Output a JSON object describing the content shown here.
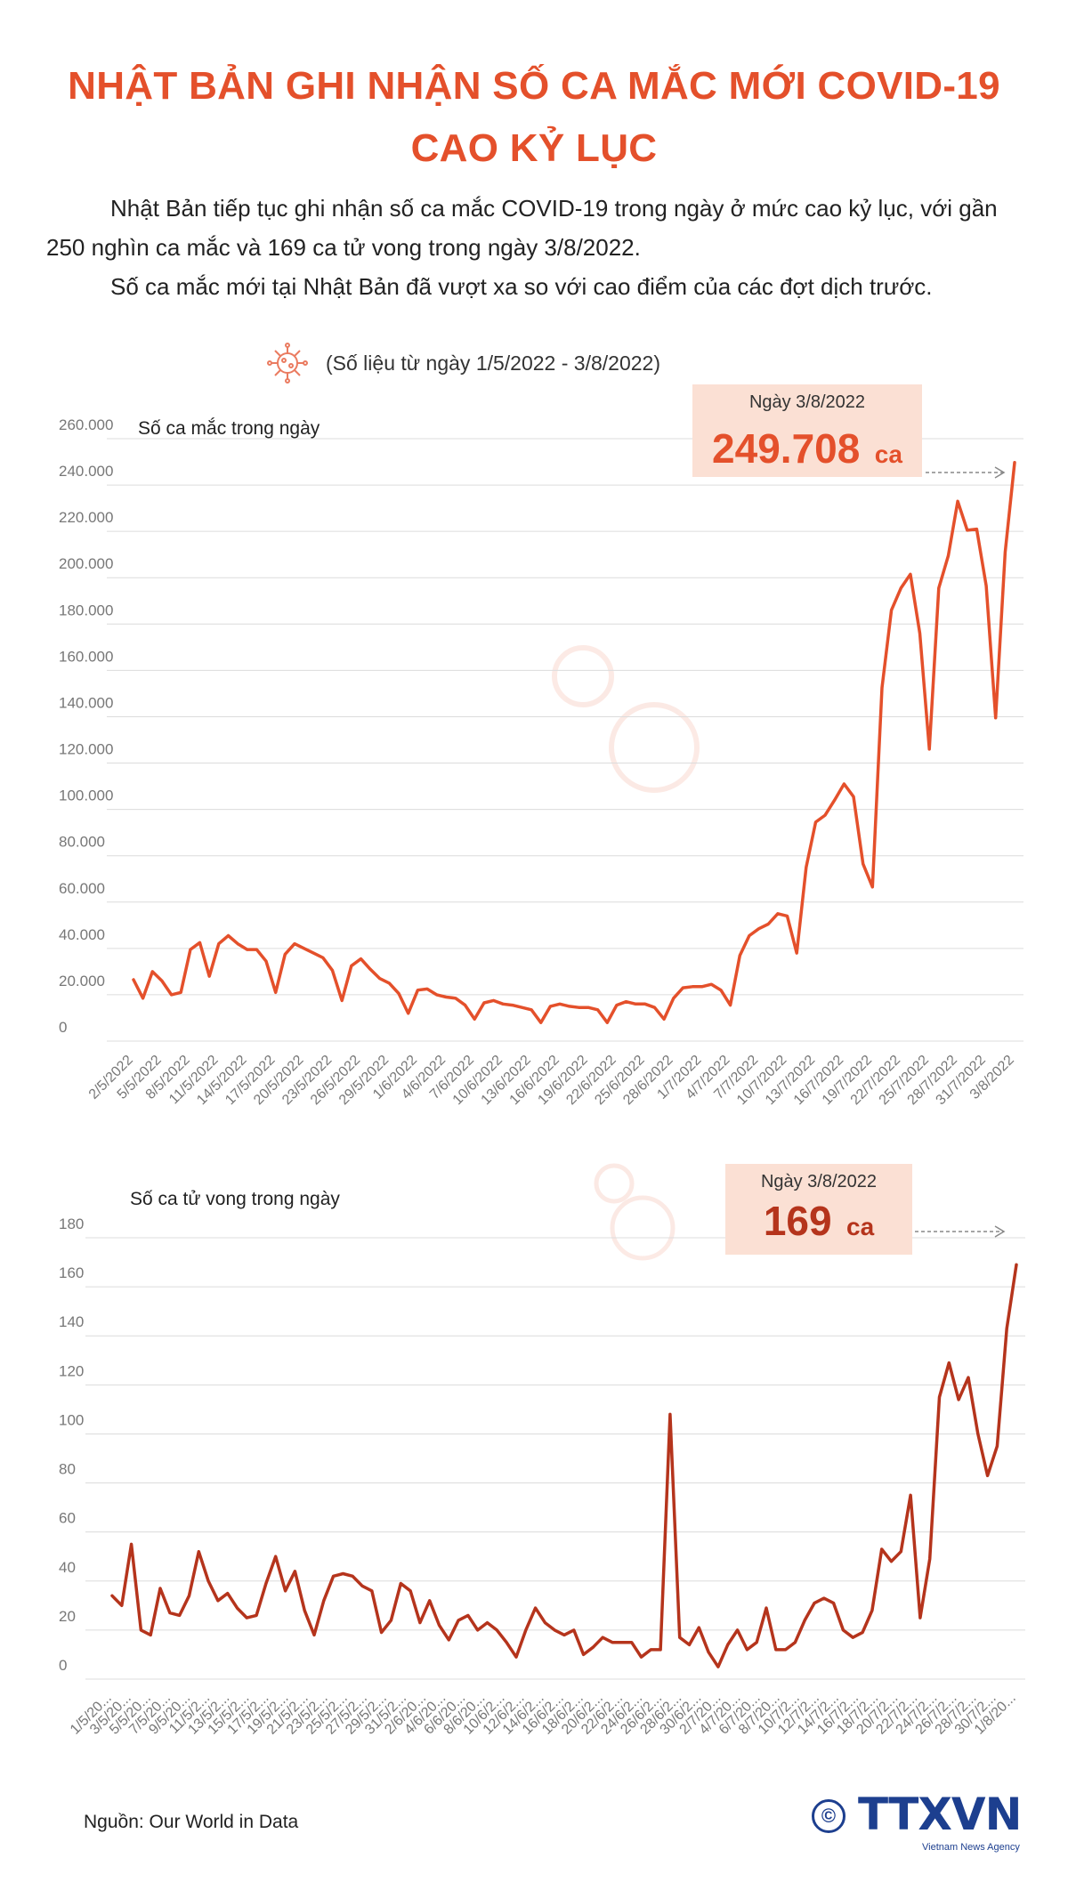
{
  "title_line1": "NHẬT BẢN GHI NHẬN SỐ CA MẮC MỚI COVID-19",
  "title_line2": "CAO KỶ LỤC",
  "intro_p1": "Nhật Bản tiếp tục ghi nhận số ca mắc COVID-19 trong ngày ở mức cao kỷ lục, với gần 250 nghìn ca mắc và 169 ca tử vong trong ngày 3/8/2022.",
  "intro_p2": "Số ca mắc mới tại Nhật Bản đã vượt xa so với cao điểm của các đợt dịch trước.",
  "date_range": "(Số liệu từ ngày 1/5/2022 - 3/8/2022)",
  "source": "Nguồn: Our World in Data",
  "logo": {
    "brand": "TTXVN",
    "sub": "Vietnam News Agency",
    "copyright": "©"
  },
  "colors": {
    "accent": "#e4502b",
    "cases_line": "#e4502b",
    "deaths_line": "#b5341c",
    "callout_bg": "#fbe0d4",
    "grid": "#dcdcdc"
  },
  "chart_data": [
    {
      "type": "line",
      "ylabel": "Số ca mắc trong ngày",
      "ylim": [
        0,
        260000
      ],
      "yticks": [
        "0",
        "20.000",
        "40.000",
        "60.000",
        "80.000",
        "100.000",
        "120.000",
        "140.000",
        "160.000",
        "180.000",
        "200.000",
        "220.000",
        "240.000",
        "260.000"
      ],
      "xtick_labels": [
        "2/5/2022",
        "5/5/2022",
        "8/5/2022",
        "11/5/2022",
        "14/5/2022",
        "17/5/2022",
        "20/5/2022",
        "23/5/2022",
        "26/5/2022",
        "29/5/2022",
        "1/6/2022",
        "4/6/2022",
        "7/6/2022",
        "10/6/2022",
        "13/6/2022",
        "16/6/2022",
        "19/6/2022",
        "22/6/2022",
        "25/6/2022",
        "28/6/2022",
        "1/7/2022",
        "4/7/2022",
        "7/7/2022",
        "10/7/2022",
        "13/7/2022",
        "16/7/2022",
        "19/7/2022",
        "22/7/2022",
        "25/7/2022",
        "28/7/2022",
        "31/7/2022",
        "3/8/2022"
      ],
      "callout": {
        "date": "Ngày 3/8/2022",
        "value": "249.708",
        "unit": "ca"
      },
      "values": [
        26500,
        18500,
        30000,
        26000,
        20000,
        21000,
        39500,
        42500,
        28000,
        42000,
        45500,
        42000,
        39500,
        39500,
        34500,
        21000,
        37500,
        42000,
        40000,
        38000,
        36000,
        30500,
        17500,
        32500,
        35500,
        31000,
        27000,
        25000,
        20500,
        12000,
        22000,
        22500,
        20000,
        19000,
        18500,
        15500,
        9500,
        16500,
        17500,
        16000,
        15500,
        14500,
        13500,
        8000,
        15000,
        16000,
        15000,
        14500,
        14500,
        13500,
        8000,
        15500,
        17000,
        16000,
        16000,
        14500,
        9500,
        18500,
        23000,
        23500,
        23500,
        24500,
        22000,
        15500,
        37000,
        45500,
        48500,
        50500,
        55000,
        54000,
        38000,
        75000,
        94500,
        97500,
        104000,
        111000,
        105500,
        76500,
        66500,
        152500,
        186000,
        195500,
        201500,
        176000,
        126000,
        195500,
        209500,
        233000,
        220500,
        221000,
        196500,
        139500,
        211000,
        249708
      ]
    },
    {
      "type": "line",
      "ylabel": "Số ca tử vong trong ngày",
      "ylim": [
        0,
        180
      ],
      "yticks": [
        "0",
        "20",
        "40",
        "60",
        "80",
        "100",
        "120",
        "140",
        "160",
        "180"
      ],
      "xtick_labels": [
        "1/5/20...",
        "3/5/20...",
        "5/5/20...",
        "7/5/20...",
        "9/5/20...",
        "11/5/2...",
        "13/5/2...",
        "15/5/2...",
        "17/5/2...",
        "19/5/2...",
        "21/5/2...",
        "23/5/2...",
        "25/5/2...",
        "27/5/2...",
        "29/5/2...",
        "31/5/2...",
        "2/6/20...",
        "4/6/20...",
        "6/6/20...",
        "8/6/20...",
        "10/6/2...",
        "12/6/2...",
        "14/6/2...",
        "16/6/2...",
        "18/6/2...",
        "20/6/2...",
        "22/6/2...",
        "24/6/2...",
        "26/6/2...",
        "28/6/2...",
        "30/6/2...",
        "2/7/20...",
        "4/7/20...",
        "6/7/20...",
        "8/7/20...",
        "10/7/2...",
        "12/7/2...",
        "14/7/2...",
        "16/7/2...",
        "18/7/2...",
        "20/7/2...",
        "22/7/2...",
        "24/7/2...",
        "26/7/2...",
        "28/7/2...",
        "30/7/2...",
        "1/8/20..."
      ],
      "callout": {
        "date": "Ngày 3/8/2022",
        "value": "169",
        "unit": "ca"
      },
      "values": [
        34,
        30,
        55,
        20,
        18,
        37,
        27,
        26,
        34,
        52,
        40,
        32,
        35,
        29,
        25,
        26,
        39,
        50,
        36,
        44,
        28,
        18,
        32,
        42,
        43,
        42,
        38,
        36,
        19,
        24,
        39,
        36,
        23,
        32,
        22,
        16,
        24,
        26,
        20,
        23,
        20,
        15,
        9,
        20,
        29,
        23,
        20,
        18,
        20,
        10,
        13,
        17,
        15,
        15,
        15,
        9,
        12,
        12,
        108,
        17,
        14,
        21,
        11,
        5,
        14,
        20,
        12,
        15,
        29,
        12,
        12,
        15,
        24,
        31,
        33,
        31,
        20,
        17,
        19,
        28,
        53,
        48,
        52,
        75,
        25,
        49,
        115,
        129,
        114,
        123,
        100,
        83,
        95,
        143,
        169
      ]
    }
  ]
}
